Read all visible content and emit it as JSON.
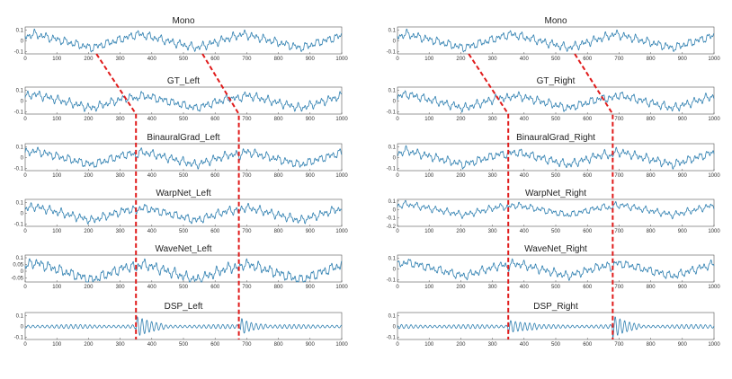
{
  "colors": {
    "trace": "#2e7fb0",
    "guide": "#e01b1b",
    "axis": "#555555"
  },
  "chart_data": {
    "type": "line",
    "x_ticks": [
      0,
      100,
      200,
      300,
      400,
      500,
      600,
      700,
      800,
      900,
      1000
    ],
    "guides": {
      "left": [
        {
          "mono_x": 225,
          "target_x": 350
        },
        {
          "mono_x": 560,
          "target_x": 675
        }
      ],
      "right": [
        {
          "mono_x": 225,
          "target_x": 350
        },
        {
          "mono_x": 560,
          "target_x": 680
        }
      ]
    },
    "panels": [
      {
        "title": "Mono",
        "column": "left",
        "row": 0,
        "ylim": [
          -0.12,
          0.13
        ],
        "yticks": [
          0.1,
          0,
          -0.1
        ],
        "ytick_labels": [
          "0.1",
          "0",
          "-0.1"
        ],
        "kind": "mono",
        "seed": 1
      },
      {
        "title": "GT_Left",
        "column": "left",
        "row": 1,
        "ylim": [
          -0.12,
          0.13
        ],
        "yticks": [
          0.1,
          0,
          -0.1
        ],
        "ytick_labels": [
          "0.1",
          "0",
          "-0.1"
        ],
        "kind": "binaural",
        "seed": 2
      },
      {
        "title": "BinauralGrad_Left",
        "column": "left",
        "row": 2,
        "ylim": [
          -0.12,
          0.13
        ],
        "yticks": [
          0.1,
          0,
          -0.1
        ],
        "ytick_labels": [
          "0.1",
          "0",
          "-0.1"
        ],
        "kind": "binaural",
        "seed": 3
      },
      {
        "title": "WarpNet_Left",
        "column": "left",
        "row": 3,
        "ylim": [
          -0.12,
          0.13
        ],
        "yticks": [
          0.1,
          0,
          -0.1
        ],
        "ytick_labels": [
          "0.1",
          "0",
          "-0.1"
        ],
        "kind": "binaural",
        "seed": 4
      },
      {
        "title": "WaveNet_Left",
        "column": "left",
        "row": 4,
        "ylim": [
          -0.08,
          0.12
        ],
        "yticks": [
          0.1,
          0.05,
          0,
          -0.05
        ],
        "ytick_labels": [
          "0.1",
          "0.05",
          "0",
          "-0.05"
        ],
        "kind": "binaural",
        "seed": 5
      },
      {
        "title": "DSP_Left",
        "column": "left",
        "row": 5,
        "ylim": [
          -0.12,
          0.13
        ],
        "yticks": [
          0.1,
          0,
          -0.1
        ],
        "ytick_labels": [
          "0.1",
          "0",
          "-0.1"
        ],
        "kind": "dsp",
        "seed": 6
      },
      {
        "title": "Mono",
        "column": "right",
        "row": 0,
        "ylim": [
          -0.12,
          0.13
        ],
        "yticks": [
          0.1,
          0,
          -0.1
        ],
        "ytick_labels": [
          "0.1",
          "0",
          "-0.1"
        ],
        "kind": "mono",
        "seed": 1
      },
      {
        "title": "GT_Right",
        "column": "right",
        "row": 1,
        "ylim": [
          -0.12,
          0.13
        ],
        "yticks": [
          0.1,
          0,
          -0.1
        ],
        "ytick_labels": [
          "0.1",
          "0",
          "-0.1"
        ],
        "kind": "binaural",
        "seed": 8
      },
      {
        "title": "BinauralGrad_Right",
        "column": "right",
        "row": 2,
        "ylim": [
          -0.12,
          0.13
        ],
        "yticks": [
          0.1,
          0,
          -0.1
        ],
        "ytick_labels": [
          "0.1",
          "0",
          "-0.1"
        ],
        "kind": "binaural",
        "seed": 9
      },
      {
        "title": "WarpNet_Right",
        "column": "right",
        "row": 3,
        "ylim": [
          -0.2,
          0.12
        ],
        "yticks": [
          0.1,
          0,
          -0.1,
          -0.2
        ],
        "ytick_labels": [
          "0.1",
          "0",
          "-0.1",
          "-0.2"
        ],
        "kind": "binaural",
        "seed": 10
      },
      {
        "title": "WaveNet_Right",
        "column": "right",
        "row": 4,
        "ylim": [
          -0.12,
          0.13
        ],
        "yticks": [
          0.1,
          0,
          -0.1
        ],
        "ytick_labels": [
          "0.1",
          "0",
          "-0.1"
        ],
        "kind": "binaural",
        "seed": 11
      },
      {
        "title": "DSP_Right",
        "column": "right",
        "row": 5,
        "ylim": [
          -0.12,
          0.13
        ],
        "yticks": [
          0.1,
          0,
          -0.1
        ],
        "ytick_labels": [
          "0.1",
          "0",
          "-0.1"
        ],
        "kind": "dsp",
        "seed": 12
      }
    ]
  }
}
